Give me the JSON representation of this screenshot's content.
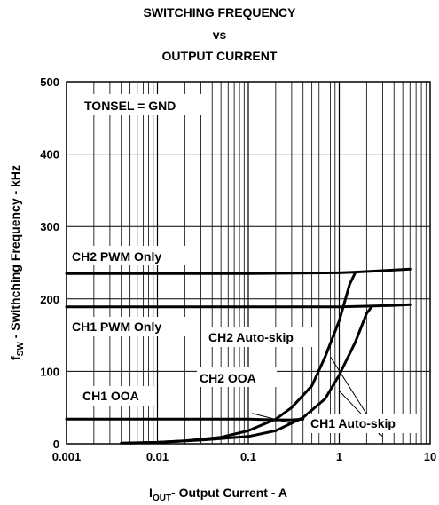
{
  "chart_data": {
    "type": "line",
    "title": [
      "SWITCHING FREQUENCY",
      "vs",
      "OUTPUT CURRENT"
    ],
    "xlabel": {
      "main": "I",
      "sub": "OUT",
      "rest": "- Output Current - A"
    },
    "ylabel": {
      "main": "f",
      "sub": "SW",
      "rest": " - Swithching Frequency - kHz"
    },
    "x_scale": "log",
    "xlim": [
      0.001,
      10
    ],
    "ylim": [
      0,
      500
    ],
    "x_ticks": [
      0.001,
      0.01,
      0.1,
      1,
      10
    ],
    "x_tick_labels": [
      "0.001",
      "0.01",
      "0.1",
      "1",
      "10"
    ],
    "y_ticks": [
      0,
      100,
      200,
      300,
      400,
      500
    ],
    "y_tick_labels": [
      "0",
      "100",
      "200",
      "300",
      "400",
      "500"
    ],
    "grid": true,
    "annotations": [
      {
        "id": "tonsel",
        "text": "TONSEL = GND"
      },
      {
        "id": "ch2-pwm",
        "text": "CH2 PWM Only"
      },
      {
        "id": "ch1-pwm",
        "text": "CH1 PWM Only"
      },
      {
        "id": "ch2-auto",
        "text": "CH2 Auto-skip"
      },
      {
        "id": "ch2-ooa",
        "text": "CH2 OOA"
      },
      {
        "id": "ch1-ooa",
        "text": "CH1 OOA"
      },
      {
        "id": "ch1-auto",
        "text": "CH1 Auto-skip"
      }
    ],
    "series": [
      {
        "name": "CH2 PWM Only",
        "x": [
          0.001,
          0.1,
          1,
          1.5,
          3,
          6
        ],
        "y": [
          235,
          235,
          236,
          237,
          239,
          241
        ]
      },
      {
        "name": "CH1 PWM Only",
        "x": [
          0.001,
          0.1,
          1,
          2,
          4,
          6
        ],
        "y": [
          189,
          189,
          189,
          190,
          191,
          192
        ]
      },
      {
        "name": "CH1 OOA",
        "x": [
          0.001,
          0.01,
          0.1,
          0.2,
          0.3,
          0.4
        ],
        "y": [
          34,
          34,
          34,
          33,
          33,
          34
        ]
      },
      {
        "name": "CH2 Auto-skip",
        "x": [
          0.004,
          0.01,
          0.02,
          0.05,
          0.1,
          0.2,
          0.3,
          0.5,
          0.7,
          1,
          1.3,
          1.5
        ],
        "y": [
          1,
          2,
          4,
          9,
          18,
          34,
          50,
          80,
          120,
          170,
          220,
          236
        ]
      },
      {
        "name": "CH1 Auto-skip",
        "x": [
          0.005,
          0.01,
          0.03,
          0.1,
          0.2,
          0.4,
          0.7,
          1,
          1.5,
          2,
          2.3
        ],
        "y": [
          1,
          2,
          5,
          10,
          18,
          36,
          62,
          95,
          140,
          180,
          190
        ]
      }
    ]
  }
}
